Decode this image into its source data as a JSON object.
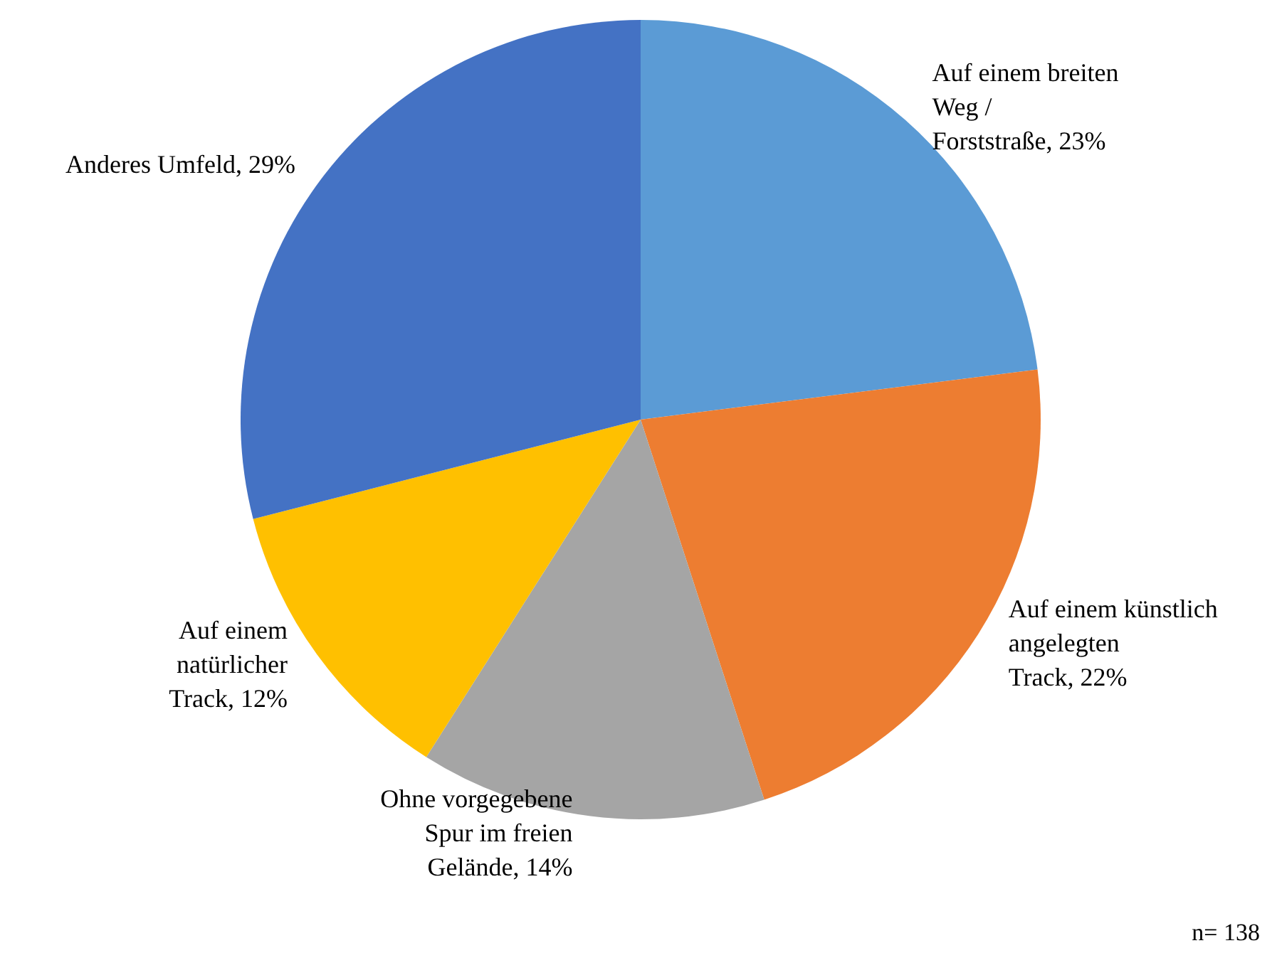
{
  "chart_data": {
    "type": "pie",
    "categories": [
      "Auf einem breiten Weg / Forststraße",
      "Auf einem künstlich angelegten Track",
      "Ohne vorgegebene Spur im freien Gelände",
      "Auf einem natürlicher Track",
      "Anderes Umfeld"
    ],
    "values": [
      23,
      22,
      14,
      12,
      29
    ],
    "value_labels": [
      "23%",
      "22%",
      "14%",
      "12%",
      "29%"
    ],
    "colors": [
      "#5b9bd5",
      "#ed7d31",
      "#a5a5a5",
      "#ffc000",
      "#4472c4"
    ],
    "annotations": [
      "n= 138"
    ]
  }
}
